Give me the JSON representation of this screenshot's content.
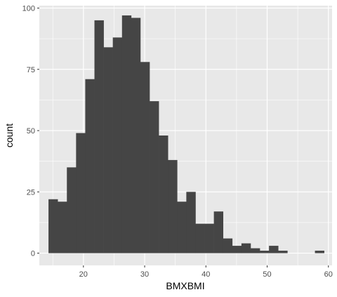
{
  "chart_data": {
    "type": "histogram",
    "xlabel": "BMXBMI",
    "ylabel": "count",
    "xlim": [
      12.8,
      60.6
    ],
    "ylim": [
      -5,
      101
    ],
    "xticks": [
      20,
      30,
      40,
      50,
      60
    ],
    "yticks": [
      0,
      25,
      50,
      75,
      100
    ],
    "grid": true,
    "bin_width": 1.5,
    "bin_left_edges": [
      14.3,
      15.8,
      17.3,
      18.8,
      20.3,
      21.8,
      23.3,
      24.8,
      26.3,
      27.8,
      29.3,
      30.8,
      32.3,
      33.8,
      35.3,
      36.8,
      38.3,
      39.8,
      41.3,
      42.8,
      44.3,
      45.8,
      47.3,
      48.8,
      50.3,
      51.8,
      53.3,
      54.8,
      56.3,
      57.8
    ],
    "counts": [
      22,
      21,
      35,
      49,
      71,
      95,
      84,
      88,
      97,
      96,
      78,
      62,
      48,
      38,
      21,
      25,
      12,
      12,
      17,
      6,
      3,
      4,
      2,
      1,
      3,
      1,
      0,
      0,
      0,
      1
    ],
    "colors": {
      "bar": "#454545",
      "panel": "#e8e8e8",
      "grid": "#ffffff"
    }
  }
}
